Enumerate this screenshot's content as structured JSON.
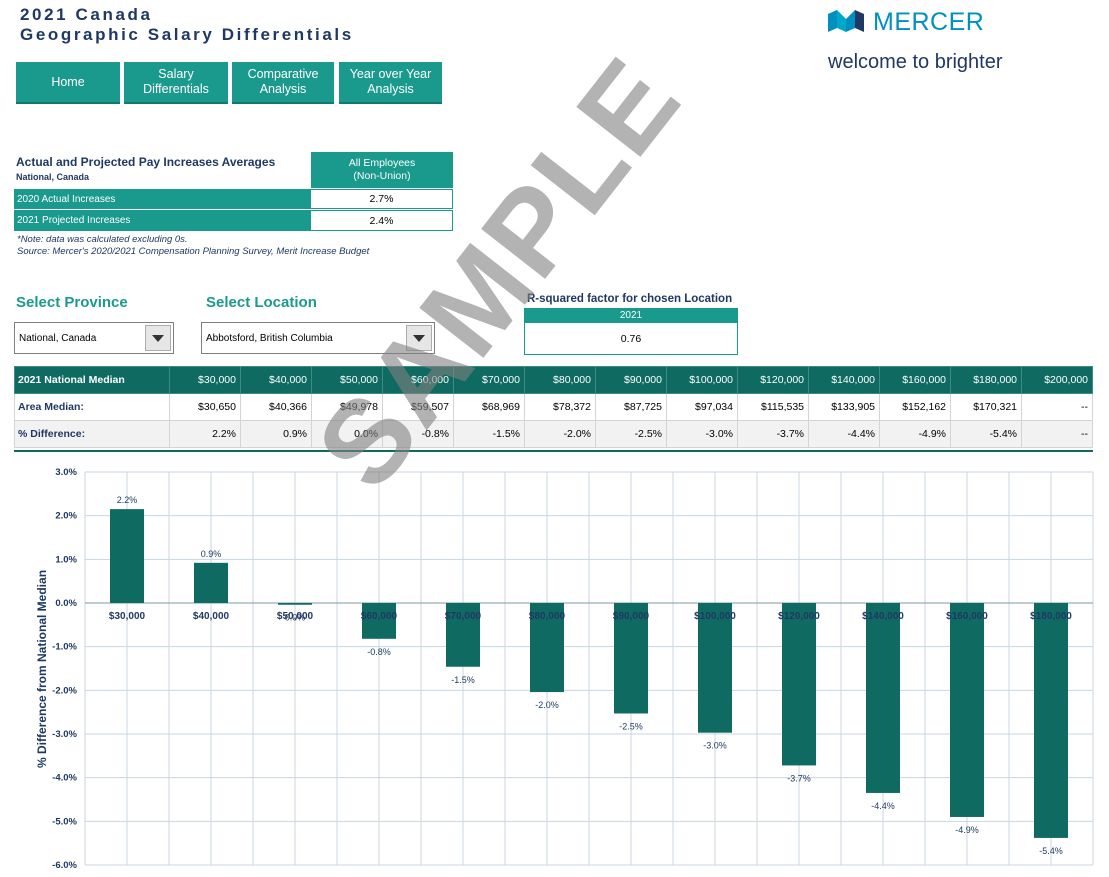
{
  "header": {
    "title_line1": "2021 Canada",
    "title_line2": "Geographic Salary Differentials"
  },
  "brand": {
    "name": "MERCER",
    "tagline": "welcome to brighter",
    "color": "#0090c0",
    "icon": "mercer-logo-icon"
  },
  "nav": [
    {
      "label": "Home"
    },
    {
      "label": "Salary\nDifferentials"
    },
    {
      "label": "Comparative\nAnalysis"
    },
    {
      "label": "Year over Year\nAnalysis"
    }
  ],
  "increases": {
    "title": "Actual and Projected Pay Increases Averages",
    "subtitle": "National, Canada",
    "column_header_1": "All Employees",
    "column_header_2": "(Non-Union)",
    "rows": [
      {
        "label": "2020 Actual Increases",
        "value": "2.7%"
      },
      {
        "label": "2021 Projected Increases",
        "value": "2.4%"
      }
    ],
    "note": "*Note: data was calculated excluding 0s.",
    "source": "Source: Mercer's 2020/2021 Compensation Planning Survey, Merit Increase Budget"
  },
  "filters": {
    "province_label": "Select Province",
    "province_value": "National, Canada",
    "location_label": "Select Location",
    "location_value": "Abbotsford, British Columbia"
  },
  "rsquared": {
    "label": "R-squared factor for chosen Location",
    "year": "2021",
    "value": "0.76"
  },
  "median_table": {
    "header_label": "2021 National Median",
    "columns": [
      "$30,000",
      "$40,000",
      "$50,000",
      "$60,000",
      "$70,000",
      "$80,000",
      "$90,000",
      "$100,000",
      "$120,000",
      "$140,000",
      "$160,000",
      "$180,000",
      "$200,000"
    ],
    "area_label": "Area Median:",
    "area_values": [
      "$30,650",
      "$40,366",
      "$49,978",
      "$59,507",
      "$68,969",
      "$78,372",
      "$87,725",
      "$97,034",
      "$115,535",
      "$133,905",
      "$152,162",
      "$170,321",
      "--"
    ],
    "pct_label": "% Difference:",
    "pct_values": [
      "2.2%",
      "0.9%",
      "0.0%",
      "-0.8%",
      "-1.5%",
      "-2.0%",
      "-2.5%",
      "-3.0%",
      "-3.7%",
      "-4.4%",
      "-4.9%",
      "-5.4%",
      "--"
    ]
  },
  "watermark": "SAMPLE",
  "chart_data": {
    "type": "bar",
    "categories": [
      "$30,000",
      "$40,000",
      "$50,000",
      "$60,000",
      "$70,000",
      "$80,000",
      "$90,000",
      "$100,000",
      "$120,000",
      "$140,000",
      "$160,000",
      "$180,000"
    ],
    "values": [
      2.15,
      0.92,
      -0.04,
      -0.82,
      -1.46,
      -2.04,
      -2.53,
      -2.97,
      -3.72,
      -4.35,
      -4.9,
      -5.38
    ],
    "data_labels": [
      "2.2%",
      "0.9%",
      "0.0%",
      "-0.8%",
      "-1.5%",
      "-2.0%",
      "-2.5%",
      "-3.0%",
      "-3.7%",
      "-4.4%",
      "-4.9%",
      "-5.4%"
    ],
    "ylabel": "% Difference from National Median",
    "xlabel": "",
    "ylim": [
      -6,
      3
    ],
    "yticks": [
      "3.0%",
      "2.0%",
      "1.0%",
      "0.0%",
      "-1.0%",
      "-2.0%",
      "-3.0%",
      "-4.0%",
      "-5.0%",
      "-6.0%"
    ],
    "bar_color": "#0f6b62",
    "grid": true
  }
}
